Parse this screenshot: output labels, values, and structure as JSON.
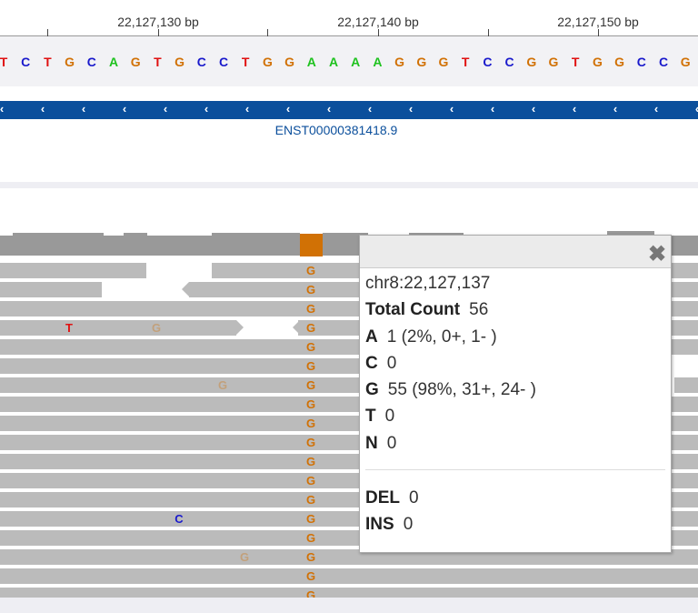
{
  "ruler": {
    "ticks": [
      {
        "label": "22,127,130 bp"
      },
      {
        "label": "22,127,140 bp"
      },
      {
        "label": "22,127,150 bp"
      }
    ]
  },
  "sequence": {
    "bases": [
      "T",
      "C",
      "T",
      "G",
      "C",
      "A",
      "G",
      "T",
      "G",
      "C",
      "C",
      "T",
      "G",
      "G",
      "A",
      "A",
      "A",
      "A",
      "G",
      "G",
      "G",
      "T",
      "C",
      "C",
      "G",
      "G",
      "T",
      "G",
      "G",
      "C",
      "C",
      "G"
    ],
    "colors": {
      "A": "#1ec21e",
      "C": "#1a1acc",
      "G": "#d17105",
      "T": "#e01010"
    }
  },
  "gene": {
    "name": "ENST00000381418.9",
    "strand_glyph": "‹"
  },
  "alignment": {
    "reference_base": "G",
    "coverage_highlight_color": "#d17105",
    "mismatches": [
      {
        "row": 3,
        "base": "T"
      },
      {
        "row": 3,
        "base": "G",
        "faint": true
      },
      {
        "row": 6,
        "base": "G",
        "faint": true
      },
      {
        "row": 13,
        "base": "C"
      },
      {
        "row": 15,
        "base": "G",
        "faint": true
      }
    ]
  },
  "popup": {
    "close_glyph": "✖",
    "position": "chr8:22,127,137",
    "total_label": "Total Count",
    "total_value": "56",
    "rows": [
      {
        "label": "A",
        "value": "1 (2%, 0+, 1- )"
      },
      {
        "label": "C",
        "value": "0"
      },
      {
        "label": "G",
        "value": "55 (98%, 31+, 24- )"
      },
      {
        "label": "T",
        "value": "0"
      },
      {
        "label": "N",
        "value": "0"
      }
    ],
    "del_label": "DEL",
    "del_value": "0",
    "ins_label": "INS",
    "ins_value": "0"
  }
}
